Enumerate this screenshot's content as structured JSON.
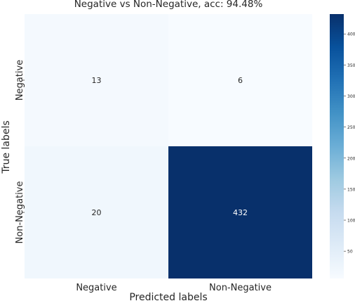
{
  "chart_data": {
    "type": "heatmap",
    "title": "Negative vs Non-Negative, acc: 94.48%",
    "xlabel": "Predicted labels",
    "ylabel": "True labels",
    "x_categories": [
      "Negative",
      "Non-Negative"
    ],
    "y_categories": [
      "Negative",
      "Non-Negative"
    ],
    "values": [
      [
        13,
        6
      ],
      [
        20,
        432
      ]
    ],
    "colorbar": {
      "colormap": "Blues",
      "min": 6,
      "max": 432,
      "ticks": [
        50,
        100,
        150,
        200,
        250,
        300,
        350,
        400
      ]
    },
    "colors": {
      "low": "#f7fbff",
      "high": "#08306b",
      "text_dark": "#262626",
      "text_light": "#ffffff"
    }
  }
}
